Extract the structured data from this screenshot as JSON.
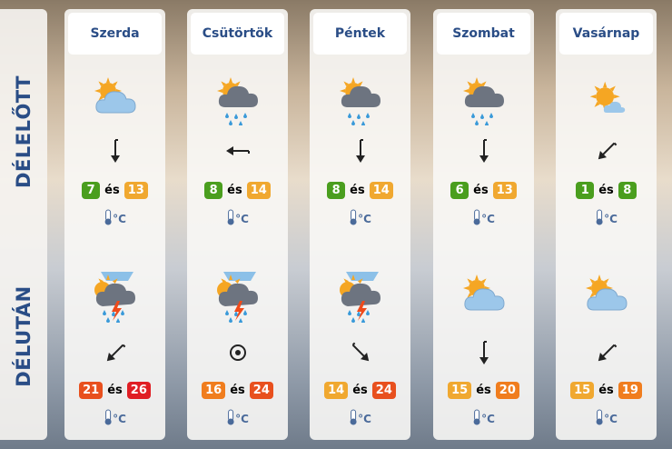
{
  "rows": {
    "morning": "DÉLELŐTT",
    "afternoon": "DÉLUTÁN"
  },
  "unit": "°C",
  "connector": "és",
  "days": [
    {
      "name": "Szerda",
      "morning": {
        "icon": "partly-cloudy-icon",
        "wind": "wind-arrow-south-icon",
        "min": "7",
        "max": "13",
        "min_color": "#4a9e1e",
        "max_color": "#f0a830"
      },
      "afternoon": {
        "icon": "thunderstorm-icon",
        "wind": "wind-arrow-southwest-icon",
        "min": "21",
        "max": "26",
        "min_color": "#e8501e",
        "max_color": "#e01e24"
      }
    },
    {
      "name": "Csütörtök",
      "morning": {
        "icon": "rain-sun-icon",
        "wind": "wind-arrow-west-icon",
        "min": "8",
        "max": "14",
        "min_color": "#4a9e1e",
        "max_color": "#f0a830"
      },
      "afternoon": {
        "icon": "thunderstorm-icon",
        "wind": "calm-wind-icon",
        "min": "16",
        "max": "24",
        "min_color": "#f07d1e",
        "max_color": "#e8501e"
      }
    },
    {
      "name": "Péntek",
      "morning": {
        "icon": "rain-sun-icon",
        "wind": "wind-arrow-south-icon",
        "min": "8",
        "max": "14",
        "min_color": "#4a9e1e",
        "max_color": "#f0a830"
      },
      "afternoon": {
        "icon": "thunderstorm-icon",
        "wind": "wind-arrow-southeast-icon",
        "min": "14",
        "max": "24",
        "min_color": "#f0a830",
        "max_color": "#e8501e"
      }
    },
    {
      "name": "Szombat",
      "morning": {
        "icon": "rain-sun-icon",
        "wind": "wind-arrow-south-icon",
        "min": "6",
        "max": "13",
        "min_color": "#4a9e1e",
        "max_color": "#f0a830"
      },
      "afternoon": {
        "icon": "partly-cloudy-icon",
        "wind": "wind-arrow-south-icon",
        "min": "15",
        "max": "20",
        "min_color": "#f0a830",
        "max_color": "#f07d1e"
      }
    },
    {
      "name": "Vasárnap",
      "morning": {
        "icon": "mostly-sunny-icon",
        "wind": "wind-arrow-southwest-icon",
        "min": "1",
        "max": "8",
        "min_color": "#4a9e1e",
        "max_color": "#4a9e1e"
      },
      "afternoon": {
        "icon": "partly-cloudy-icon",
        "wind": "wind-arrow-southwest-icon",
        "min": "15",
        "max": "19",
        "min_color": "#f0a830",
        "max_color": "#f07d1e"
      }
    }
  ]
}
